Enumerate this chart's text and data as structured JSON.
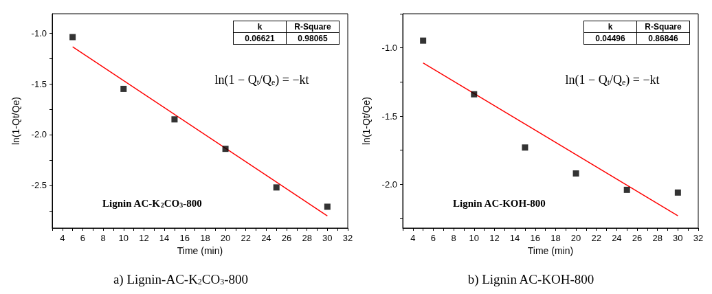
{
  "chart_data": [
    {
      "type": "scatter",
      "xlabel": "Time (min)",
      "ylabel": "ln(1-Qt/Qe)",
      "xlim": [
        3,
        32
      ],
      "xticks": [
        {
          "value": 3,
          "label": null
        },
        4,
        {
          "value": 5,
          "label": null
        },
        6,
        {
          "value": 7,
          "label": null
        },
        8,
        {
          "value": 9,
          "label": null
        },
        10,
        {
          "value": 11,
          "label": null
        },
        12,
        {
          "value": 13,
          "label": null
        },
        14,
        {
          "value": 15,
          "label": null
        },
        16,
        {
          "value": 17,
          "label": null
        },
        18,
        {
          "value": 19,
          "label": null
        },
        20,
        {
          "value": 21,
          "label": null
        },
        22,
        {
          "value": 23,
          "label": null
        },
        24,
        {
          "value": 25,
          "label": null
        },
        26,
        {
          "value": 27,
          "label": null
        },
        28,
        {
          "value": 29,
          "label": null
        },
        30,
        {
          "value": 31,
          "label": null
        },
        32
      ],
      "ylim": [
        -2.92,
        -0.81
      ],
      "yticks": [
        {
          "value": -2.75,
          "label": null
        },
        {
          "value": -2.5,
          "label": "-2.5"
        },
        {
          "value": -2.25,
          "label": null
        },
        {
          "value": -2,
          "label": "-2.0"
        },
        {
          "value": -1.75,
          "label": null
        },
        {
          "value": -1.5,
          "label": "-1.5"
        },
        {
          "value": -1.25,
          "label": null
        },
        {
          "value": -1,
          "label": "-1.0"
        }
      ],
      "annotations": [
        "k",
        "R-Square",
        "0.06621",
        "0.98065",
        "ln(1 − Q$_{t}$/Q$_{e}$) = −kt",
        "Lignin AC-K$_{2}$CO$_{3}$-800",
        "a) Lignin-AC-K$_{2}$CO$_{3}$-800"
      ],
      "series": [
        {
          "color": "#000000",
          "marker": "square",
          "x": [
            5,
            10,
            15,
            20,
            25,
            30
          ],
          "values": [
            -1.04,
            -1.55,
            -1.85,
            -2.14,
            -2.52,
            -2.71
          ]
        },
        {
          "type": "line",
          "color": "#ff0000",
          "marker": "none",
          "x": [
            5,
            30
          ],
          "values": [
            -1.135,
            -2.8
          ]
        }
      ]
    },
    {
      "type": "scatter",
      "xlabel": "Time (min)",
      "ylabel": "ln(1-Qt/Qe)",
      "xlim": [
        3,
        32
      ],
      "xticks": [
        {
          "value": 3,
          "label": null
        },
        4,
        {
          "value": 5,
          "label": null
        },
        6,
        {
          "value": 7,
          "label": null
        },
        8,
        {
          "value": 9,
          "label": null
        },
        10,
        {
          "value": 11,
          "label": null
        },
        12,
        {
          "value": 13,
          "label": null
        },
        14,
        {
          "value": 15,
          "label": null
        },
        16,
        {
          "value": 17,
          "label": null
        },
        18,
        {
          "value": 19,
          "label": null
        },
        20,
        {
          "value": 21,
          "label": null
        },
        22,
        {
          "value": 23,
          "label": null
        },
        24,
        {
          "value": 25,
          "label": null
        },
        26,
        {
          "value": 27,
          "label": null
        },
        28,
        {
          "value": 29,
          "label": null
        },
        30,
        {
          "value": 31,
          "label": null
        },
        32
      ],
      "ylim": [
        -2.32,
        -0.75
      ],
      "yticks": [
        {
          "value": -2.25,
          "label": null
        },
        {
          "value": -2,
          "label": "-2.0"
        },
        {
          "value": -1.75,
          "label": null
        },
        {
          "value": -1.5,
          "label": "-1.5"
        },
        {
          "value": -1.25,
          "label": null
        },
        {
          "value": -1,
          "label": "-1.0"
        },
        {
          "value": -0.75,
          "label": null
        }
      ],
      "annotations": [
        "k",
        "R-Square",
        "0.04496",
        "0.86846",
        "ln(1 − Q$_{t}$/Q$_{e}$) = −kt",
        "Lignin AC-KOH-800",
        "b) Lignin AC-KOH-800"
      ],
      "series": [
        {
          "color": "#000000",
          "marker": "square",
          "x": [
            5,
            10,
            15,
            20,
            25,
            30
          ],
          "values": [
            -0.947,
            -1.34,
            -1.73,
            -1.92,
            -2.04,
            -2.06
          ]
        },
        {
          "type": "line",
          "color": "#ff0000",
          "marker": "none",
          "x": [
            5,
            30
          ],
          "values": [
            -1.11,
            -2.23
          ]
        }
      ]
    }
  ]
}
